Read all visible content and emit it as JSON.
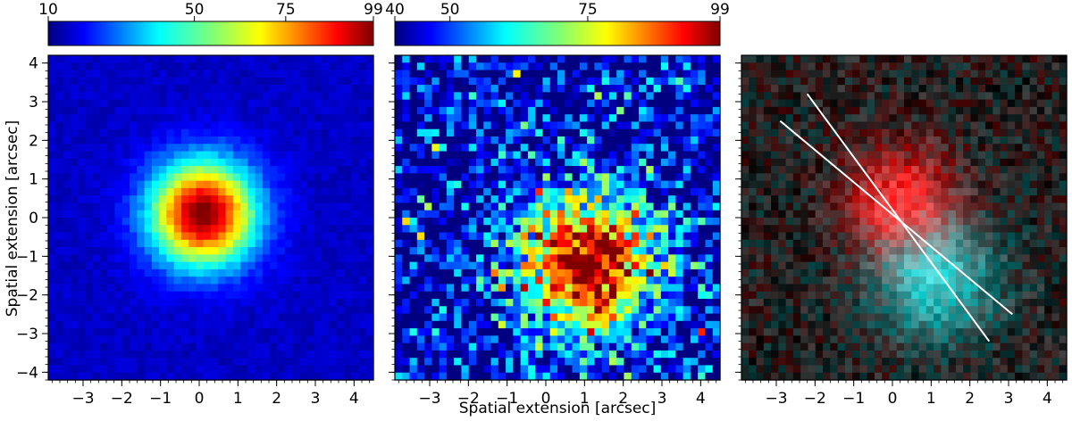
{
  "chart_data": [
    {
      "type": "heatmap",
      "panel": "left",
      "colormap": "jet",
      "colorbar": {
        "min": 10,
        "max": 99,
        "ticks": [
          10,
          50,
          75,
          99
        ],
        "position": "top"
      },
      "xlabel": "",
      "ylabel": "Spatial extension [arcsec]",
      "xlim": [
        -3.9,
        4.5
      ],
      "ylim": [
        -4.2,
        4.2
      ],
      "xticks": [
        -3,
        -2,
        -1,
        0,
        1,
        2,
        3,
        4
      ],
      "yticks": [
        -4,
        -3,
        -2,
        -1,
        0,
        1,
        2,
        3,
        4
      ],
      "grid": false,
      "source": {
        "center": [
          0.1,
          0.1
        ],
        "sigma_arcsec": 0.95,
        "peak": 99,
        "background": 16
      }
    },
    {
      "type": "heatmap",
      "panel": "middle",
      "colormap": "jet",
      "colorbar": {
        "min": 40,
        "max": 99,
        "ticks": [
          40,
          50,
          75,
          99
        ],
        "position": "top"
      },
      "xlabel": "Spatial extension [arcsec]",
      "ylabel": "",
      "xlim": [
        -3.9,
        4.5
      ],
      "ylim": [
        -4.2,
        4.2
      ],
      "xticks": [
        -3,
        -2,
        -1,
        0,
        1,
        2,
        3,
        4
      ],
      "yticks": [
        -4,
        -3,
        -2,
        -1,
        0,
        1,
        2,
        3,
        4
      ],
      "grid": false,
      "source": {
        "center": [
          1.1,
          -1.2
        ],
        "sigma_arcsec": 1.3,
        "peak": 99,
        "background": 42
      }
    },
    {
      "type": "heatmap",
      "panel": "right",
      "colormap": "red-cyan composite",
      "xlabel": "",
      "ylabel": "",
      "xlim": [
        -3.9,
        4.5
      ],
      "ylim": [
        -4.2,
        4.2
      ],
      "xticks": [
        -3,
        -2,
        -1,
        0,
        1,
        2,
        3,
        4
      ],
      "yticks": [
        -4,
        -3,
        -2,
        -1,
        0,
        1,
        2,
        3,
        4
      ],
      "grid": false,
      "overlay_lines": [
        {
          "x": [
            -2.2,
            2.5
          ],
          "y": [
            3.2,
            -3.2
          ],
          "color": "#ffffff"
        },
        {
          "x": [
            -2.9,
            3.1
          ],
          "y": [
            2.5,
            -2.5
          ],
          "color": "#ffffff"
        }
      ],
      "red_source": {
        "center": [
          0.2,
          0.4
        ],
        "sigma_arcsec": 1.0
      },
      "cyan_source": {
        "center": [
          1.1,
          -1.6
        ],
        "sigma_arcsec": 1.1
      }
    }
  ]
}
